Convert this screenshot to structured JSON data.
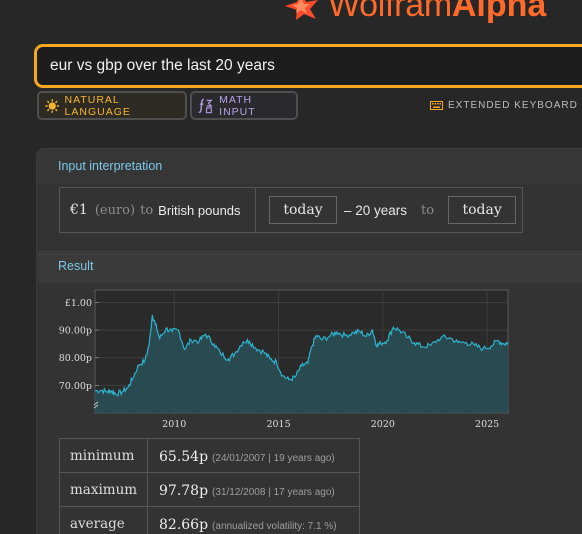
{
  "brand": {
    "name_light": "Wolfram",
    "name_bold": "Alpha",
    "logo_icon": "wolfram-star-icon"
  },
  "search": {
    "query": "eur vs gbp over the last 20 years"
  },
  "modes": {
    "natural_language": "NATURAL LANGUAGE",
    "math_input": "MATH INPUT"
  },
  "keyboard": {
    "label": "EXTENDED KEYBOARD",
    "icon": "keyboard-icon"
  },
  "input_interpretation": {
    "heading": "Input interpretation",
    "amount": "€1",
    "currency_note": "(euro)",
    "to_word": "to",
    "target": "British pounds",
    "range_start": "today",
    "range_span": "– 20 years",
    "range_to": "to",
    "range_end": "today"
  },
  "result": {
    "heading": "Result"
  },
  "colors": {
    "accent": "#f7a823",
    "brand": "#ff6a2a",
    "series": "#2fb2cc",
    "area": "#2a4e55",
    "heading": "#7cc9e8"
  },
  "chart_data": {
    "type": "area",
    "series_name": "",
    "x_unit": "year",
    "x": [
      2006.2,
      2006.5,
      2006.8,
      2007.0,
      2007.2,
      2007.5,
      2007.8,
      2008.0,
      2008.3,
      2008.6,
      2008.8,
      2008.95,
      2009.1,
      2009.3,
      2009.6,
      2009.9,
      2010.2,
      2010.5,
      2010.8,
      2011.2,
      2011.5,
      2011.9,
      2012.2,
      2012.6,
      2012.9,
      2013.3,
      2013.6,
      2013.9,
      2014.3,
      2014.6,
      2014.9,
      2015.2,
      2015.5,
      2015.8,
      2016.1,
      2016.4,
      2016.6,
      2016.8,
      2017.1,
      2017.5,
      2017.8,
      2018.2,
      2018.6,
      2018.9,
      2019.2,
      2019.5,
      2019.7,
      2019.9,
      2020.2,
      2020.5,
      2020.8,
      2021.2,
      2021.5,
      2021.9,
      2022.3,
      2022.8,
      2023.2,
      2023.6,
      2024.0,
      2024.4,
      2024.8,
      2025.2,
      2025.5,
      2025.8,
      2026.0
    ],
    "y": [
      0.68,
      0.682,
      0.677,
      0.68,
      0.669,
      0.676,
      0.694,
      0.725,
      0.774,
      0.79,
      0.85,
      0.955,
      0.92,
      0.87,
      0.905,
      0.895,
      0.9,
      0.83,
      0.865,
      0.86,
      0.885,
      0.85,
      0.818,
      0.795,
      0.815,
      0.858,
      0.86,
      0.835,
      0.82,
      0.795,
      0.784,
      0.735,
      0.72,
      0.73,
      0.77,
      0.78,
      0.84,
      0.88,
      0.865,
      0.88,
      0.893,
      0.88,
      0.891,
      0.895,
      0.877,
      0.9,
      0.845,
      0.852,
      0.862,
      0.91,
      0.9,
      0.872,
      0.855,
      0.84,
      0.845,
      0.874,
      0.872,
      0.855,
      0.855,
      0.845,
      0.832,
      0.843,
      0.862,
      0.85,
      0.855
    ],
    "xticks": [
      2010,
      2015,
      2020,
      2025
    ],
    "xtick_labels": [
      "2010",
      "2015",
      "2020",
      "2025"
    ],
    "yticks": [
      0.7,
      0.8,
      0.9,
      1.0
    ],
    "ytick_labels": [
      "70.00p",
      "80.00p",
      "90.00p",
      "£1.00"
    ],
    "xlim": [
      2006.2,
      2026.0
    ],
    "ylim": [
      0.6,
      1.045
    ],
    "grid": true,
    "legend": "none"
  },
  "stats": [
    {
      "label": "minimum",
      "value": "65.54p",
      "note": "(24/01/2007 | 19 years ago)"
    },
    {
      "label": "maximum",
      "value": "97.78p",
      "note": "(31/12/2008 | 17 years ago)"
    },
    {
      "label": "average",
      "value": "82.66p",
      "note": "(annualized volatility: 7.1 %)"
    }
  ]
}
